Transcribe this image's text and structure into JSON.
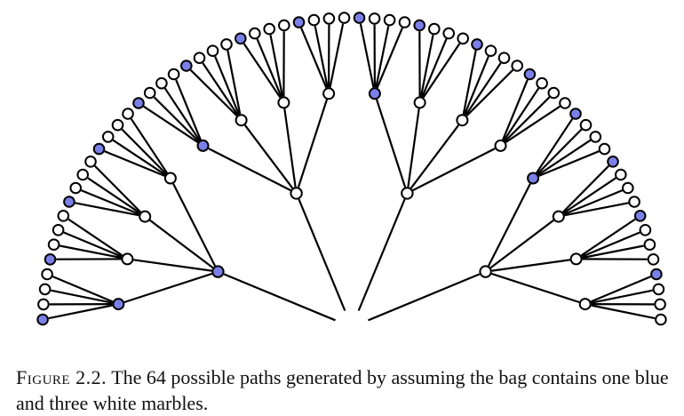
{
  "figure": {
    "marble_sequence": [
      "blue",
      "white",
      "white",
      "white"
    ],
    "colors": {
      "blue": "#7b80e8",
      "white": "#ffffff",
      "stroke": "#000000"
    }
  },
  "caption": {
    "label": "Figure 2.2.",
    "text": "The 64 possible paths generated by assuming the bag contains one blue and three white marbles."
  }
}
